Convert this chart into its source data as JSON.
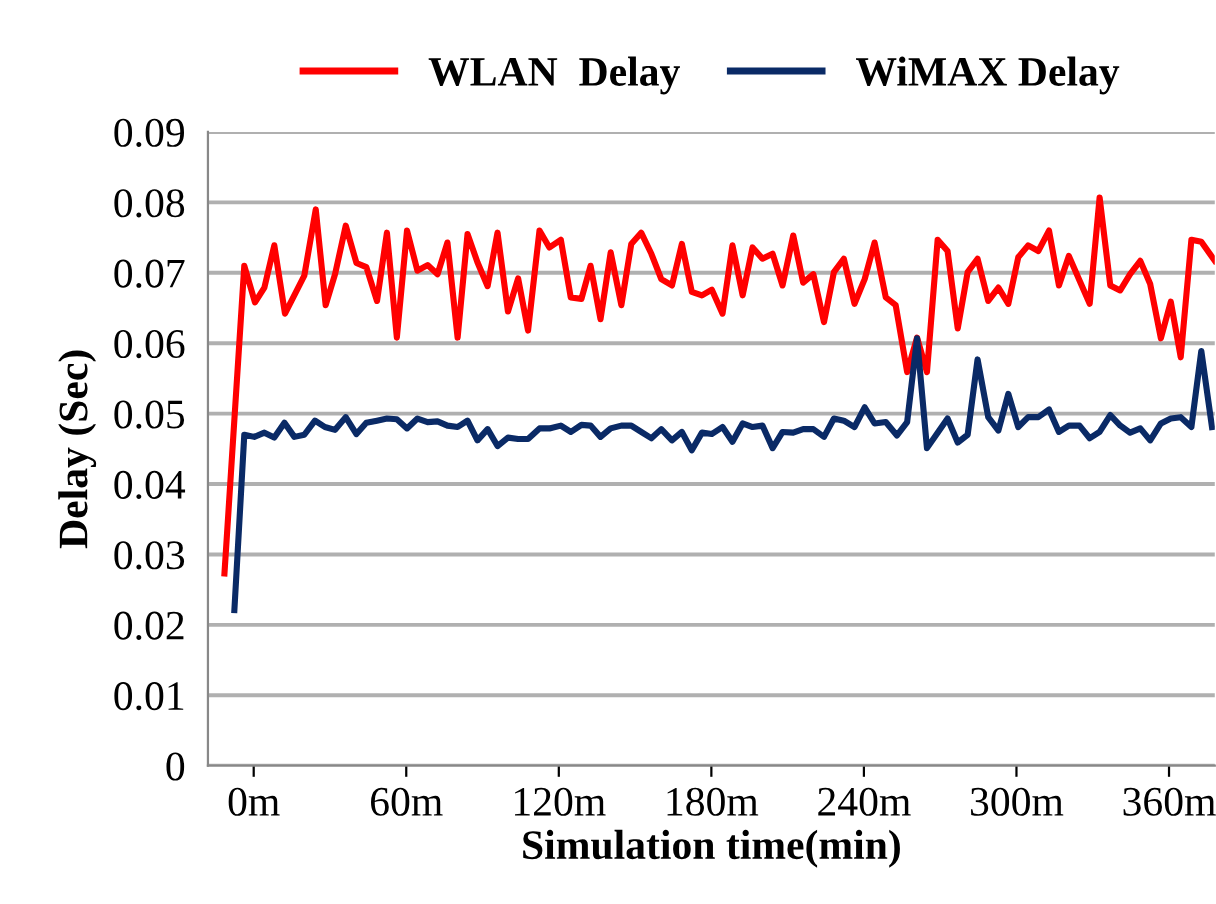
{
  "chart_data": {
    "type": "line",
    "xlabel": "Simulation time(min)",
    "ylabel": "Delay (Sec)",
    "xlim": [
      -18,
      378
    ],
    "xticks": [
      {
        "value": 0,
        "label": "0m"
      },
      {
        "value": 60,
        "label": "60m"
      },
      {
        "value": 120,
        "label": "120m"
      },
      {
        "value": 180,
        "label": "180m"
      },
      {
        "value": 240,
        "label": "240m"
      },
      {
        "value": 300,
        "label": "300m"
      },
      {
        "value": 360,
        "label": "360m"
      }
    ],
    "ylim": [
      0,
      0.09
    ],
    "yticks": [
      0,
      0.01,
      0.02,
      0.03,
      0.04,
      0.05,
      0.06,
      0.07,
      0.08,
      0.09
    ],
    "grid": "y",
    "legend": "top",
    "marker": "none",
    "line_style": "solid",
    "series": [
      {
        "name": "WLAN  Delay",
        "color": "#ff0000",
        "x": [
          -11.5,
          -3.7,
          0.5,
          4.2,
          8.1,
          12.3,
          19.9,
          24.4,
          28.3,
          32,
          36.2,
          40.4,
          44.3,
          48.5,
          52.4,
          56.3,
          60.3,
          64.4,
          68.4,
          72.3,
          76.2,
          80.2,
          84.1,
          88,
          92,
          95.9,
          100,
          104,
          107.9,
          112.4,
          116.3,
          120.8,
          124.7,
          128.9,
          132.5,
          136.4,
          140.4,
          144.6,
          148.5,
          152.4,
          156.4,
          160.3,
          164.5,
          168.4,
          172.3,
          176.3,
          180.2,
          184.4,
          188.3,
          192.3,
          196.2,
          200.1,
          204.1,
          208,
          212.2,
          216.1,
          220.1,
          224.3,
          228.2,
          232.1,
          236.3,
          240.3,
          244.2,
          248.6,
          252.5,
          257,
          260.9,
          264.8,
          269,
          272.9,
          276.9,
          280.8,
          284.7,
          288.9,
          292.9,
          296.8,
          300.7,
          304.6,
          308.6,
          312.8,
          316.7,
          320.6,
          324.8,
          328.8,
          332.7,
          336.9,
          340.8,
          344.7,
          348.7,
          352.6,
          356.8,
          360.7,
          364.6,
          368.8,
          372.7,
          378
        ],
        "values": [
          0.0273,
          0.071,
          0.0658,
          0.0679,
          0.0739,
          0.0642,
          0.0696,
          0.079,
          0.0654,
          0.0698,
          0.0767,
          0.0714,
          0.0708,
          0.066,
          0.0757,
          0.0608,
          0.076,
          0.0703,
          0.0711,
          0.0698,
          0.0743,
          0.0608,
          0.0755,
          0.0715,
          0.0681,
          0.0757,
          0.0645,
          0.0692,
          0.0618,
          0.076,
          0.0736,
          0.0747,
          0.0665,
          0.0663,
          0.071,
          0.0634,
          0.0729,
          0.0654,
          0.0741,
          0.0757,
          0.0727,
          0.0691,
          0.0682,
          0.0741,
          0.0673,
          0.0668,
          0.0676,
          0.0642,
          0.0739,
          0.0668,
          0.0736,
          0.072,
          0.0727,
          0.0682,
          0.0753,
          0.0686,
          0.0698,
          0.063,
          0.0701,
          0.072,
          0.0656,
          0.0691,
          0.0743,
          0.0665,
          0.0654,
          0.0559,
          0.0608,
          0.0559,
          0.0747,
          0.0731,
          0.0621,
          0.0701,
          0.072,
          0.066,
          0.0679,
          0.0656,
          0.0722,
          0.0739,
          0.0731,
          0.076,
          0.0682,
          0.0724,
          0.0689,
          0.0656,
          0.0807,
          0.0682,
          0.0675,
          0.0698,
          0.0717,
          0.0684,
          0.0607,
          0.0659,
          0.058,
          0.0747,
          0.0744,
          0.0717
        ]
      },
      {
        "name": "WiMAX Delay",
        "color": "#0a2a66",
        "x": [
          -7.6,
          -3.7,
          0.2,
          4.2,
          8.1,
          12.1,
          16,
          19.9,
          24.1,
          28,
          32,
          36.2,
          40.4,
          44.3,
          48.5,
          52.4,
          56.3,
          60.3,
          64.4,
          68.4,
          72.3,
          76.2,
          80.2,
          84.1,
          88,
          92,
          95.9,
          100,
          104,
          107.9,
          112.4,
          116.3,
          120.8,
          124.7,
          128.9,
          132.5,
          136.4,
          140.4,
          144.6,
          148.5,
          152.4,
          156.4,
          160.3,
          164.5,
          168.4,
          172.3,
          176.3,
          180.2,
          184.4,
          188.3,
          192.3,
          196.2,
          200.1,
          204.1,
          208,
          212.2,
          216.1,
          220.1,
          224.3,
          228.2,
          232.1,
          236.3,
          240.3,
          244.2,
          248.6,
          253,
          257,
          260.9,
          264.8,
          269,
          272.9,
          276.9,
          280.8,
          284.7,
          288.9,
          292.9,
          296.8,
          300.7,
          304.6,
          308.6,
          312.8,
          316.7,
          320.6,
          324.8,
          328.8,
          332.7,
          336.9,
          340.8,
          344.7,
          348.7,
          352.6,
          356.8,
          360.7,
          364.6,
          368.8,
          372.7,
          376.9
        ],
        "values": [
          0.0221,
          0.047,
          0.0467,
          0.0473,
          0.0466,
          0.0487,
          0.0467,
          0.047,
          0.049,
          0.0481,
          0.0477,
          0.0495,
          0.0471,
          0.0487,
          0.049,
          0.0493,
          0.0492,
          0.0479,
          0.0493,
          0.0488,
          0.0489,
          0.0483,
          0.0481,
          0.049,
          0.0462,
          0.0478,
          0.0454,
          0.0466,
          0.0464,
          0.0464,
          0.0479,
          0.0479,
          0.0483,
          0.0474,
          0.0484,
          0.0483,
          0.0467,
          0.0479,
          0.0483,
          0.0483,
          0.0474,
          0.0465,
          0.0478,
          0.0462,
          0.0474,
          0.0448,
          0.0473,
          0.0471,
          0.0481,
          0.046,
          0.0486,
          0.0481,
          0.0483,
          0.0451,
          0.0474,
          0.0473,
          0.0478,
          0.0478,
          0.0467,
          0.0493,
          0.049,
          0.0481,
          0.0509,
          0.0486,
          0.0488,
          0.0469,
          0.0488,
          0.0607,
          0.0451,
          0.0473,
          0.0493,
          0.0459,
          0.047,
          0.0577,
          0.0495,
          0.0476,
          0.0528,
          0.0481,
          0.0495,
          0.0495,
          0.0506,
          0.0474,
          0.0483,
          0.0483,
          0.0465,
          0.0474,
          0.0498,
          0.0483,
          0.0473,
          0.0479,
          0.0462,
          0.0486,
          0.0493,
          0.0495,
          0.0481,
          0.0589,
          0.0481
        ]
      }
    ]
  }
}
